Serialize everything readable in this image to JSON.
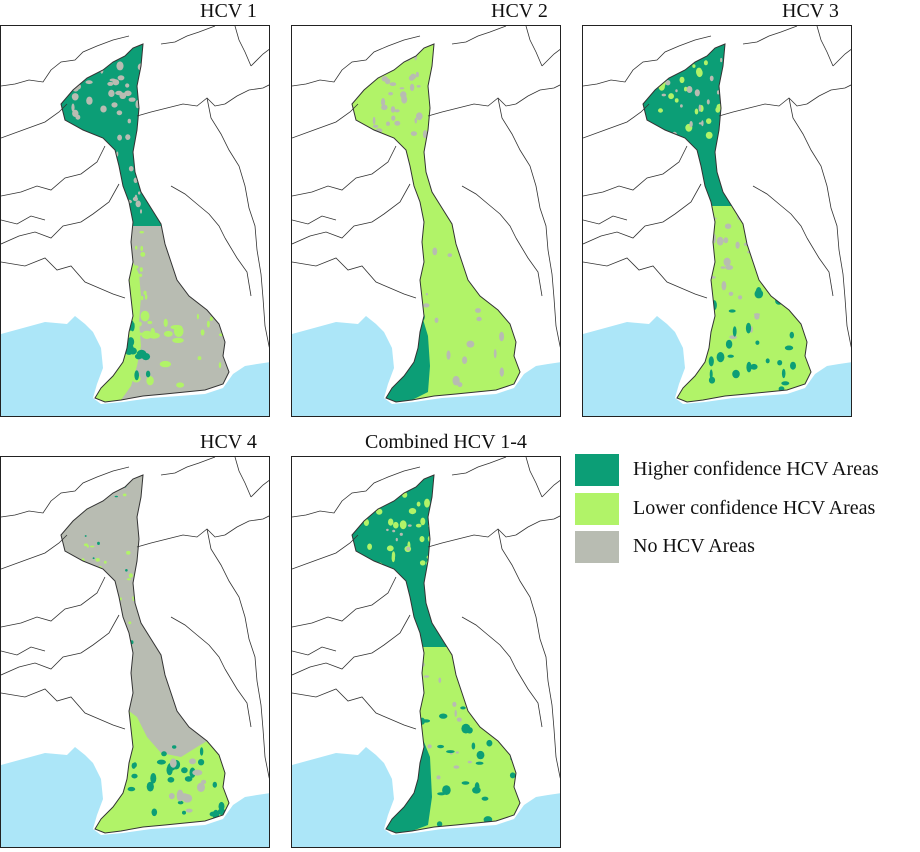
{
  "colors": {
    "higher": "#0c9e76",
    "lower": "#b1f368",
    "none": "#b8bcb2",
    "sea": "#ace6f8",
    "land": "#ffffff",
    "outline": "#333333"
  },
  "panels": [
    {
      "id": "hcv1",
      "title": "HCV 1",
      "pattern": "hcv1"
    },
    {
      "id": "hcv2",
      "title": "HCV 2",
      "pattern": "hcv2"
    },
    {
      "id": "hcv3",
      "title": "HCV 3",
      "pattern": "hcv3"
    },
    {
      "id": "hcv4",
      "title": "HCV 4",
      "pattern": "hcv4"
    },
    {
      "id": "combined",
      "title": "Combined HCV 1-4",
      "pattern": "combined"
    }
  ],
  "legend": [
    {
      "label": "Higher confidence HCV Areas",
      "color": "#0c9e76"
    },
    {
      "label": "Lower confidence HCV Areas",
      "color": "#b1f368"
    },
    {
      "label": "No HCV Areas",
      "color": "#b8bcb2"
    }
  ]
}
